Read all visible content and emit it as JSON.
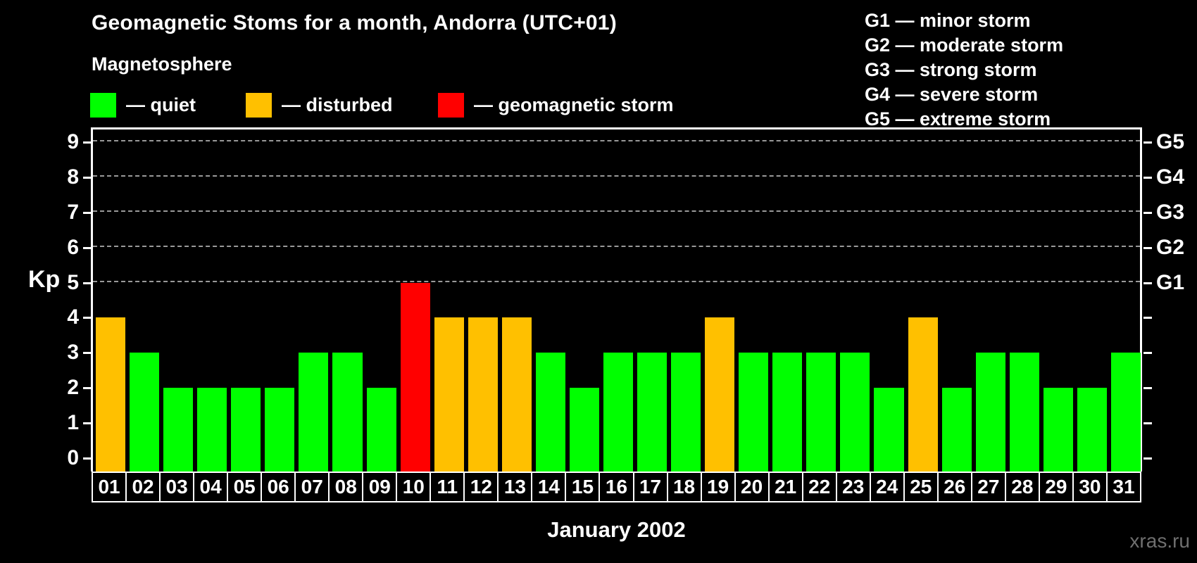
{
  "header": {
    "title": "Geomagnetic Stoms for a month, Andorra (UTC+01)",
    "legend_title": "Magnetosphere"
  },
  "legend": {
    "items": [
      {
        "name": "quiet",
        "text": "— quiet",
        "color": "#00FF00"
      },
      {
        "name": "disturbed",
        "text": "— disturbed",
        "color": "#FFC000"
      },
      {
        "name": "storm",
        "text": "— geomagnetic storm",
        "color": "#FF0000"
      }
    ]
  },
  "g_legend": {
    "items": [
      {
        "code": "G1",
        "text": "G1 — minor storm"
      },
      {
        "code": "G2",
        "text": "G2 — moderate storm"
      },
      {
        "code": "G3",
        "text": "G3 — strong storm"
      },
      {
        "code": "G4",
        "text": "G4 — severe storm"
      },
      {
        "code": "G5",
        "text": "G5 — extreme storm"
      }
    ]
  },
  "chart_data": {
    "type": "bar",
    "title": "Geomagnetic Stoms for a month, Andorra (UTC+01)",
    "xlabel": "January 2002",
    "ylabel": "Kp",
    "ylim": [
      0,
      9
    ],
    "y_ticks": [
      0,
      1,
      2,
      3,
      4,
      5,
      6,
      7,
      8,
      9
    ],
    "right_axis_labels": [
      {
        "kp": 5,
        "label": "G1"
      },
      {
        "kp": 6,
        "label": "G2"
      },
      {
        "kp": 7,
        "label": "G3"
      },
      {
        "kp": 8,
        "label": "G4"
      },
      {
        "kp": 9,
        "label": "G5"
      }
    ],
    "grid": "dashed horizontal lines at Kp 5 to 9",
    "legend_position": "top",
    "categories": [
      "01",
      "02",
      "03",
      "04",
      "05",
      "06",
      "07",
      "08",
      "09",
      "10",
      "11",
      "12",
      "13",
      "14",
      "15",
      "16",
      "17",
      "18",
      "19",
      "20",
      "21",
      "22",
      "23",
      "24",
      "25",
      "26",
      "27",
      "28",
      "29",
      "30",
      "31"
    ],
    "series": [
      {
        "name": "Kp index",
        "values": [
          4,
          3,
          2,
          2,
          2,
          2,
          3,
          3,
          2,
          5,
          4,
          4,
          4,
          3,
          2,
          3,
          3,
          3,
          4,
          3,
          3,
          3,
          3,
          2,
          4,
          2,
          3,
          3,
          2,
          2,
          3
        ]
      }
    ],
    "statuses": [
      "disturbed",
      "quiet",
      "quiet",
      "quiet",
      "quiet",
      "quiet",
      "quiet",
      "quiet",
      "quiet",
      "storm",
      "disturbed",
      "disturbed",
      "disturbed",
      "quiet",
      "quiet",
      "quiet",
      "quiet",
      "quiet",
      "disturbed",
      "quiet",
      "quiet",
      "quiet",
      "quiet",
      "quiet",
      "disturbed",
      "quiet",
      "quiet",
      "quiet",
      "quiet",
      "quiet",
      "quiet"
    ],
    "colors": {
      "quiet": "#00FF00",
      "disturbed": "#FFC000",
      "storm": "#FF0000"
    }
  },
  "footer": {
    "watermark": "xras.ru"
  }
}
